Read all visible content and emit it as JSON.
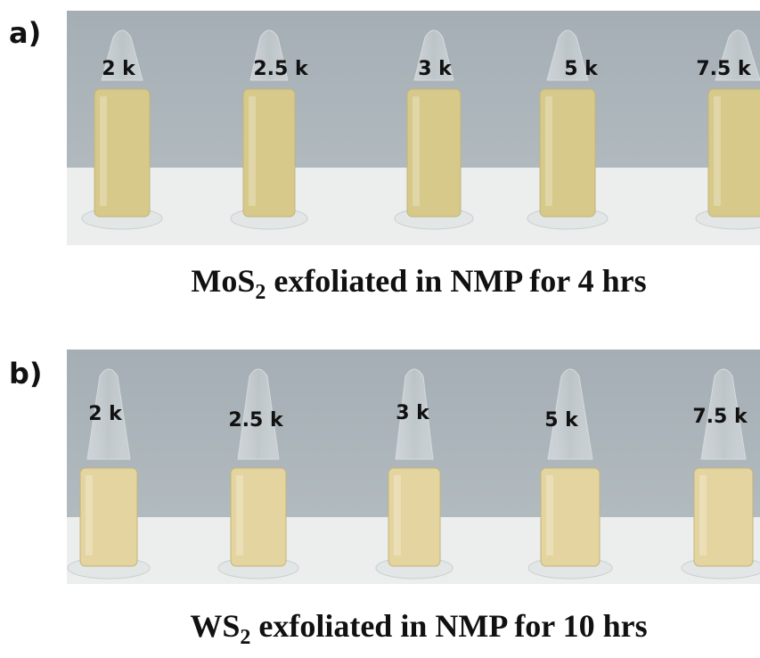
{
  "panels": [
    {
      "label": "a)",
      "tubes": [
        "2 k",
        "2.5 k",
        "3 k",
        "5 k",
        "7.5 k"
      ],
      "caption": {
        "compound": "MoS",
        "subscript": "2",
        "rest": " exfoliated in NMP for 4 hrs"
      }
    },
    {
      "label": "b)",
      "tubes": [
        "2 k",
        "2.5 k",
        "3 k",
        "5 k",
        "7.5 k"
      ],
      "caption": {
        "compound": "WS",
        "subscript": "2",
        "rest": " exfoliated in NMP for 10 hrs"
      }
    }
  ]
}
